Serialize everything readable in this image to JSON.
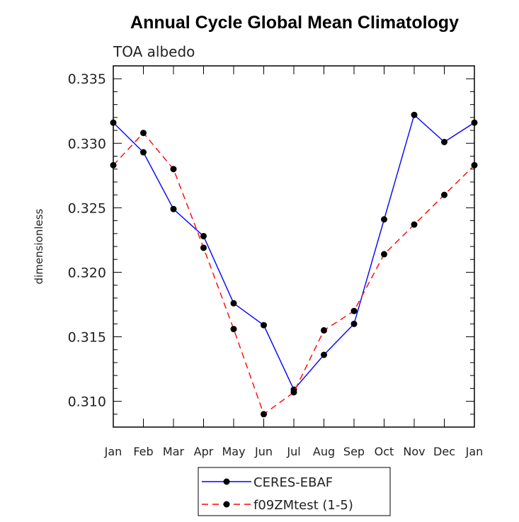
{
  "chart_data": {
    "type": "line",
    "title": "Annual Cycle Global Mean Climatology",
    "subtitle": "TOA albedo",
    "ylabel": "dimensionless",
    "xlabel": "",
    "ylim": [
      0.308,
      0.336
    ],
    "yticks": [
      0.31,
      0.315,
      0.32,
      0.325,
      0.33,
      0.335
    ],
    "ytick_labels": [
      "0.310",
      "0.315",
      "0.320",
      "0.325",
      "0.330",
      "0.335"
    ],
    "categories": [
      "Jan",
      "Feb",
      "Mar",
      "Apr",
      "May",
      "Jun",
      "Jul",
      "Aug",
      "Sep",
      "Oct",
      "Nov",
      "Dec",
      "Jan"
    ],
    "series": [
      {
        "name": "CERES-EBAF",
        "color": "#0000ff",
        "dash": "solid",
        "values": [
          0.3316,
          0.3293,
          0.3249,
          0.3228,
          0.3176,
          0.3159,
          0.3109,
          0.3136,
          0.316,
          0.3241,
          0.3322,
          0.3301,
          0.3316
        ]
      },
      {
        "name": "f09ZMtest (1-5)",
        "color": "#ff0000",
        "dash": "dashed",
        "values": [
          0.3283,
          0.3308,
          0.328,
          0.3219,
          0.3156,
          0.309,
          0.3107,
          0.3155,
          0.317,
          0.3214,
          0.3237,
          0.326,
          0.3283
        ]
      }
    ],
    "legend_position": "bottom"
  }
}
